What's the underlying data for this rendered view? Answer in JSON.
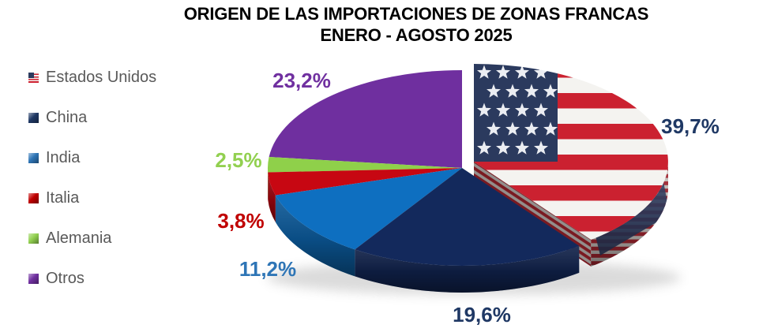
{
  "title": {
    "line1": "ORIGEN DE LAS IMPORTACIONES DE ZONAS FRANCAS",
    "line2": "ENERO - AGOSTO 2025"
  },
  "legend": {
    "items": [
      {
        "label": "Estados Unidos",
        "swatch": "us-flag",
        "color": "#B22234"
      },
      {
        "label": "China",
        "swatch": "square",
        "color": "#1F3864"
      },
      {
        "label": "India",
        "swatch": "square",
        "color": "#2E75B6"
      },
      {
        "label": "Italia",
        "swatch": "square",
        "color": "#C00000"
      },
      {
        "label": "Alemania",
        "swatch": "square",
        "color": "#92D050"
      },
      {
        "label": "Otros",
        "swatch": "square",
        "color": "#7030A0"
      }
    ]
  },
  "chart_data": {
    "type": "pie",
    "style": "3d-exploded",
    "title": "ORIGEN DE LAS IMPORTACIONES DE ZONAS FRANCAS ENERO - AGOSTO 2025",
    "categories": [
      "Estados Unidos",
      "China",
      "India",
      "Italia",
      "Alemania",
      "Otros"
    ],
    "values": [
      39.7,
      19.6,
      11.2,
      3.8,
      2.5,
      23.2
    ],
    "labels": [
      "39,7%",
      "19,6%",
      "11,2%",
      "3,8%",
      "2,5%",
      "23,2%"
    ],
    "slice_colors": [
      "us-flag",
      "#13295C",
      "#0E6FC0",
      "#C70712",
      "#8FD04A",
      "#6F2F9F"
    ],
    "label_colors": [
      "#1F3864",
      "#1F3864",
      "#2E75B6",
      "#C00000",
      "#92D050",
      "#7030A0"
    ],
    "exploded_slice": "Estados Unidos",
    "legend_position": "left",
    "background": "#FFFFFF"
  }
}
